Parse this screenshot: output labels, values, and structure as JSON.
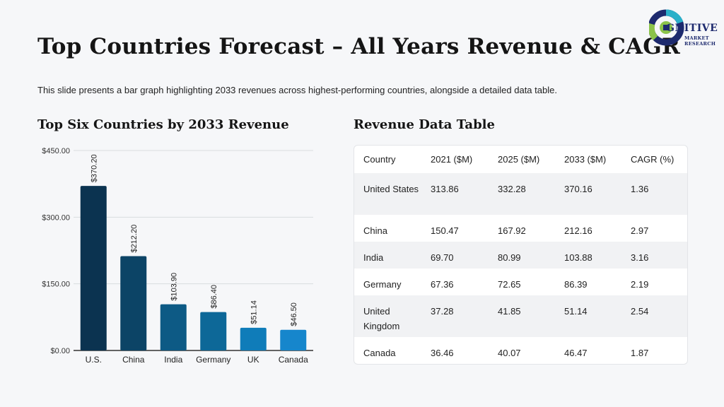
{
  "page": {
    "title": "Top Countries Forecast – All Years Revenue & CAGR",
    "subtitle": "This slide presents a bar graph highlighting 2033 revenues across highest-performing countries, alongside a detailed data table."
  },
  "logo": {
    "word": "GNITIVE",
    "line1": "MARKET",
    "line2": "RESEARCH",
    "colors": [
      "#1d2a6e",
      "#2bb0c9",
      "#8bc34a"
    ]
  },
  "chart_section": {
    "title": "Top Six Countries by 2033 Revenue"
  },
  "table_section": {
    "title": "Revenue Data Table"
  },
  "chart_data": {
    "type": "bar",
    "categories": [
      "U.S.",
      "China",
      "India",
      "Germany",
      "UK",
      "Canada"
    ],
    "values": [
      370.2,
      212.2,
      103.9,
      86.4,
      51.14,
      46.5
    ],
    "data_labels": [
      "$370.20",
      "$212.20",
      "$103.90",
      "$86.40",
      "$51.14",
      "$46.50"
    ],
    "y_ticks": [
      "$0.00",
      "$150.00",
      "$300.00",
      "$450.00"
    ],
    "y_tick_values": [
      0,
      150,
      300,
      450
    ],
    "ylim": [
      0,
      450
    ],
    "grid": true,
    "colors": [
      "#0b3350",
      "#0c4466",
      "#0d5a85",
      "#0d6898",
      "#0f7cb9",
      "#1686cc"
    ]
  },
  "table": {
    "headers": [
      "Country",
      "2021 ($M)",
      "2025 ($M)",
      "2033 ($M)",
      "CAGR (%)"
    ],
    "rows": [
      [
        "United States",
        "313.86",
        "332.28",
        "370.16",
        "1.36"
      ],
      [
        "China",
        "150.47",
        "167.92",
        "212.16",
        "2.97"
      ],
      [
        "India",
        "69.70",
        "80.99",
        "103.88",
        "3.16"
      ],
      [
        "Germany",
        "67.36",
        "72.65",
        "86.39",
        "2.19"
      ],
      [
        "United Kingdom",
        "37.28",
        "41.85",
        "51.14",
        "2.54"
      ],
      [
        "Canada",
        "36.46",
        "40.07",
        "46.47",
        "1.87"
      ]
    ]
  }
}
